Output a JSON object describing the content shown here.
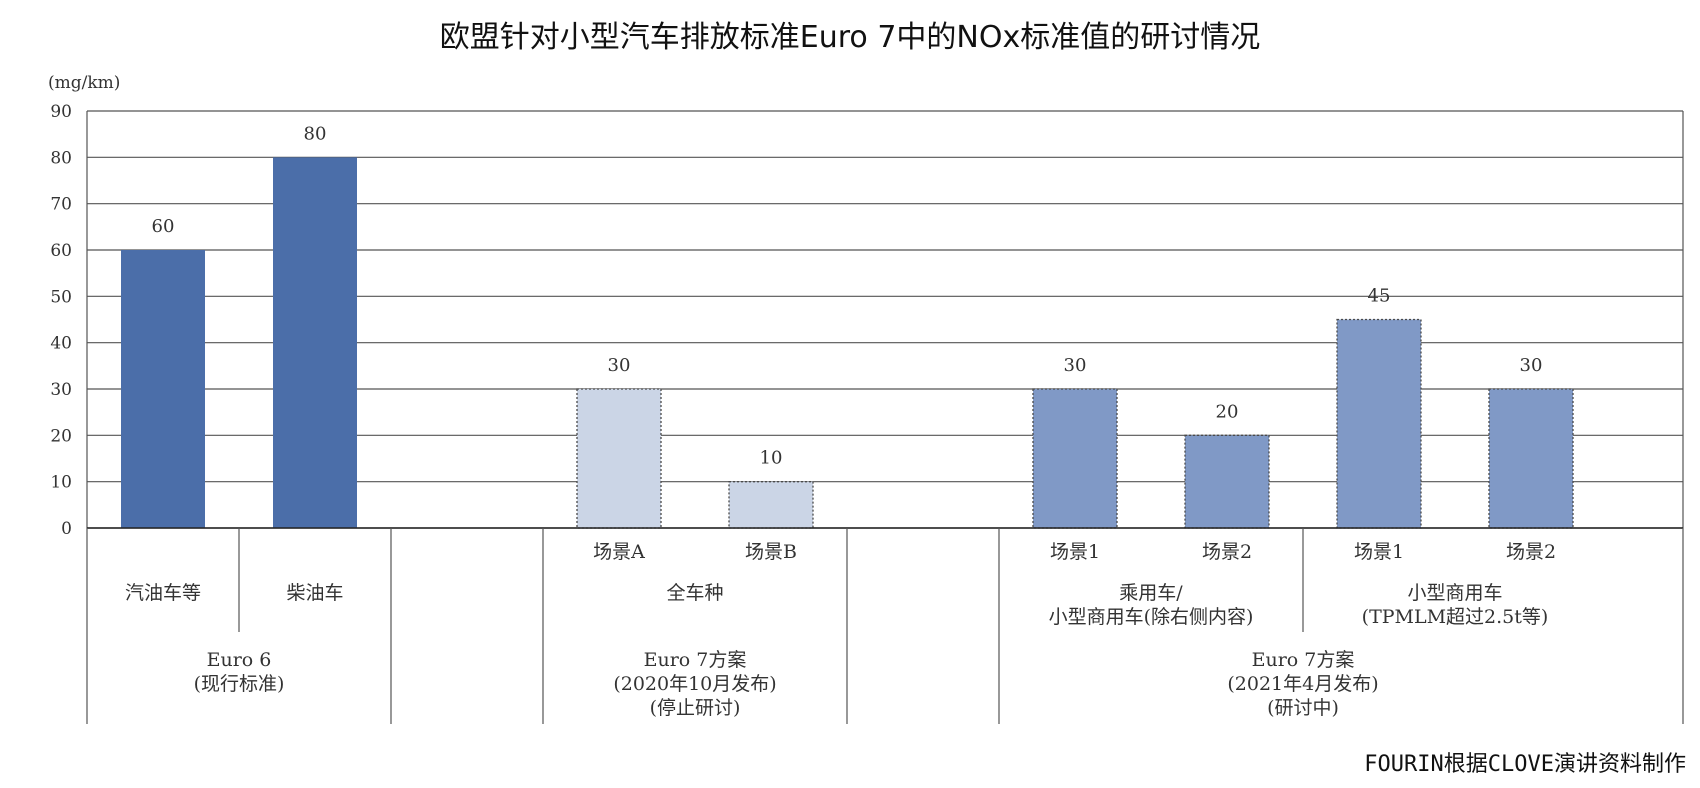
{
  "chart_data": {
    "type": "bar",
    "title": "欧盟针对小型汽车排放标准Euro 7中的NOx标准值的研讨情况",
    "y_unit": "(mg/km)",
    "ylim": [
      0,
      90
    ],
    "yticks": [
      0,
      10,
      20,
      30,
      40,
      50,
      60,
      70,
      80,
      90
    ],
    "grid": true,
    "categories": [
      "汽油车等",
      "柴油车",
      "",
      "场景A",
      "场景B",
      "",
      "场景1",
      "场景2",
      "场景1",
      "场景2"
    ],
    "values": [
      60,
      80,
      null,
      30,
      10,
      null,
      30,
      20,
      45,
      30
    ],
    "data_labels": [
      "60",
      "80",
      "",
      "30",
      "10",
      "",
      "30",
      "20",
      "45",
      "30"
    ],
    "bar_colors": [
      "#4b6ea9",
      "#4b6ea9",
      null,
      "#cbd5e6",
      "#cbd5e6",
      null,
      "#8099c6",
      "#8099c6",
      "#8099c6",
      "#8099c6"
    ],
    "bar_dashed": [
      false,
      false,
      false,
      true,
      true,
      false,
      true,
      true,
      true,
      true
    ],
    "subgroups": [
      {
        "label": "全车种",
        "from": 3,
        "to": 4
      },
      {
        "label": "乘用车/\n小型商用车(除右侧内容)",
        "from": 6,
        "to": 7
      },
      {
        "label": "小型商用车\n(TPMLM超过2.5t等)",
        "from": 8,
        "to": 9
      }
    ],
    "groups": [
      {
        "label": "Euro 6\n(现行标准)",
        "from": 0,
        "to": 1
      },
      {
        "label": "Euro 7方案\n(2020年10月发布)\n(停止研讨)",
        "from": 3,
        "to": 4
      },
      {
        "label": "Euro 7方案\n(2021年4月发布)\n(研讨中)",
        "from": 6,
        "to": 9
      }
    ]
  },
  "source": "FOURIN根据CLOVE演讲资料制作"
}
